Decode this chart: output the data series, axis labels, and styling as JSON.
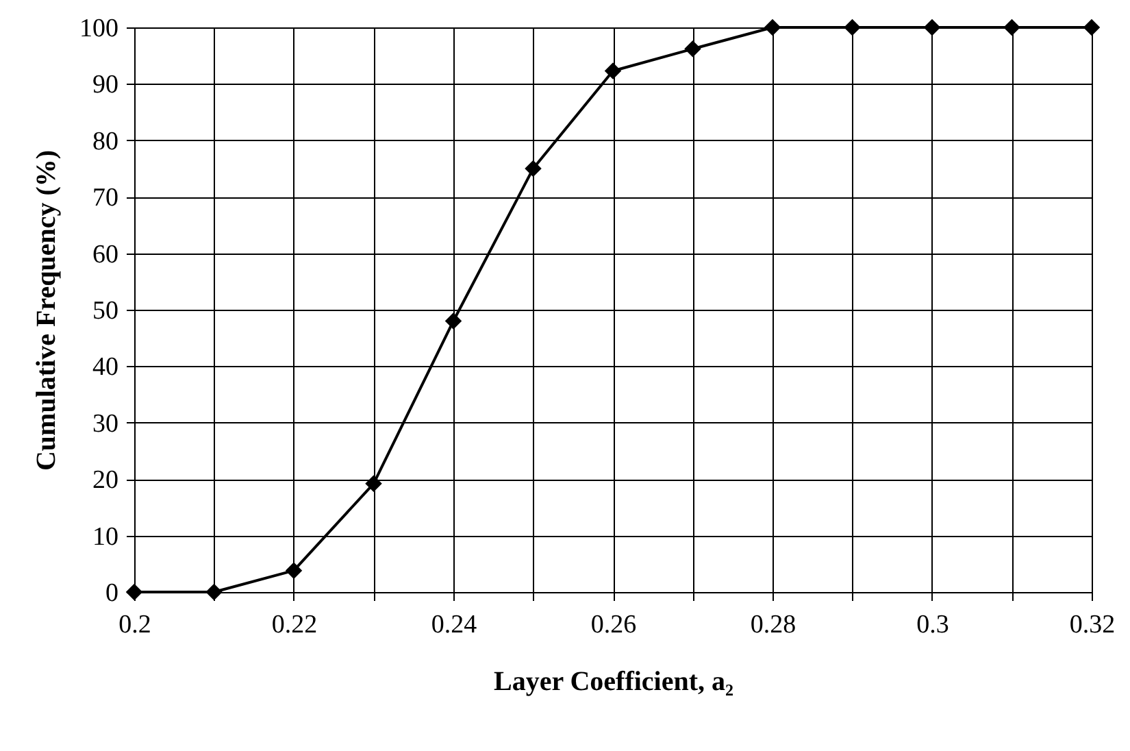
{
  "chart_data": {
    "type": "line",
    "xlabel": "Layer Coefficient, a₂",
    "ylabel": "Cumulative Frequency (%)",
    "x": [
      0.2,
      0.21,
      0.22,
      0.23,
      0.24,
      0.25,
      0.26,
      0.27,
      0.28,
      0.29,
      0.3,
      0.31,
      0.32
    ],
    "series": [
      {
        "color": "#000000",
        "values": [
          0,
          0,
          3.8,
          19.2,
          48,
          75,
          92.3,
          96.2,
          100,
          100,
          100,
          100,
          100
        ]
      }
    ],
    "xlim": [
      0.2,
      0.32
    ],
    "xticks": [
      0.2,
      {
        "value": 0.21,
        "label": null
      },
      0.22,
      {
        "value": 0.23,
        "label": null
      },
      0.24,
      {
        "value": 0.25,
        "label": null
      },
      0.26,
      {
        "value": 0.27,
        "label": null
      },
      0.28,
      {
        "value": 0.29,
        "label": null
      },
      0.3,
      {
        "value": 0.31,
        "label": null
      },
      0.32
    ],
    "ylim": [
      0,
      100
    ],
    "yticks": [
      0,
      10,
      20,
      30,
      40,
      50,
      60,
      70,
      80,
      90,
      100
    ],
    "grid": true,
    "marker": "diamond",
    "line_style": "solid"
  }
}
